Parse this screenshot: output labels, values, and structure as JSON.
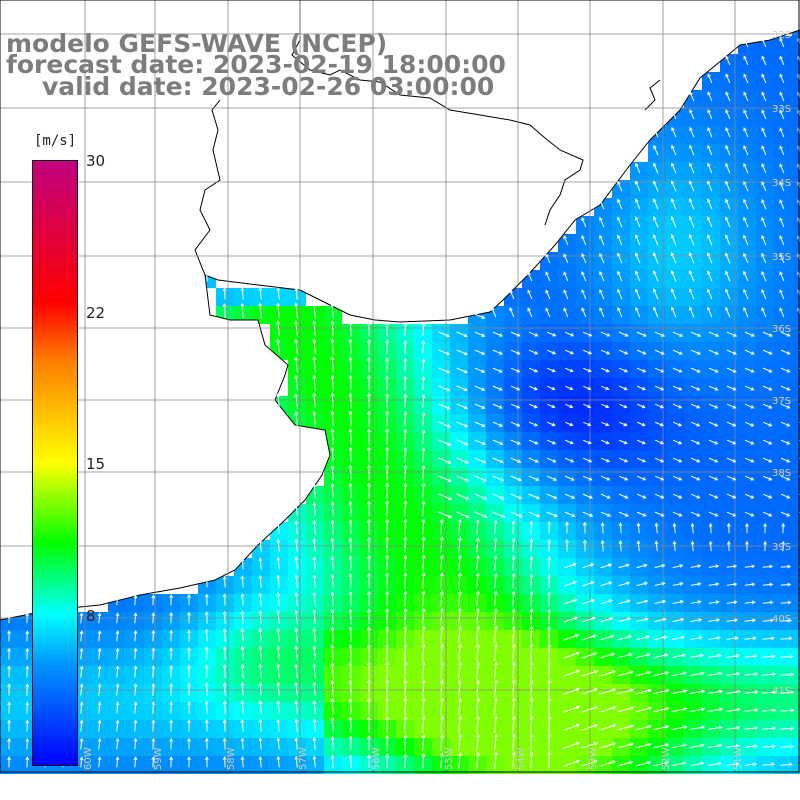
{
  "title": {
    "model": "modelo GEFS-WAVE (NCEP)",
    "forecast": "forecast date: 2023-02-19 18:00:00",
    "valid": "valid date: 2023-02-26 03:00:00"
  },
  "colorbar": {
    "unit": "[m/s]",
    "min": 0,
    "max": 30,
    "ticks": [
      {
        "label": "30",
        "value": 30
      },
      {
        "label": "22",
        "value": 22.5
      },
      {
        "label": "15",
        "value": 15
      },
      {
        "label": "8",
        "value": 7.5
      }
    ],
    "gradient_stops": [
      {
        "value": 0,
        "color": "#0000ff"
      },
      {
        "value": 5,
        "color": "#0096ff"
      },
      {
        "value": 7.5,
        "color": "#00ffff"
      },
      {
        "value": 11,
        "color": "#00ff00"
      },
      {
        "value": 15,
        "color": "#ffff00"
      },
      {
        "value": 20,
        "color": "#ff8000"
      },
      {
        "value": 23,
        "color": "#ff0000"
      },
      {
        "value": 30,
        "color": "#c00080"
      }
    ]
  },
  "map": {
    "longitude_labels": [
      "60W",
      "59W",
      "58W",
      "57W",
      "56W",
      "55W",
      "54W",
      "53W",
      "52W",
      "51W"
    ],
    "latitude_labels": [
      "32S",
      "33S",
      "34S",
      "35S",
      "36S",
      "37S",
      "38S",
      "39S",
      "40S",
      "41S"
    ],
    "land_color": "#ffffff",
    "coastline_color": "#000000",
    "grid_color": "#888888",
    "vector_color": "#ffffff"
  }
}
